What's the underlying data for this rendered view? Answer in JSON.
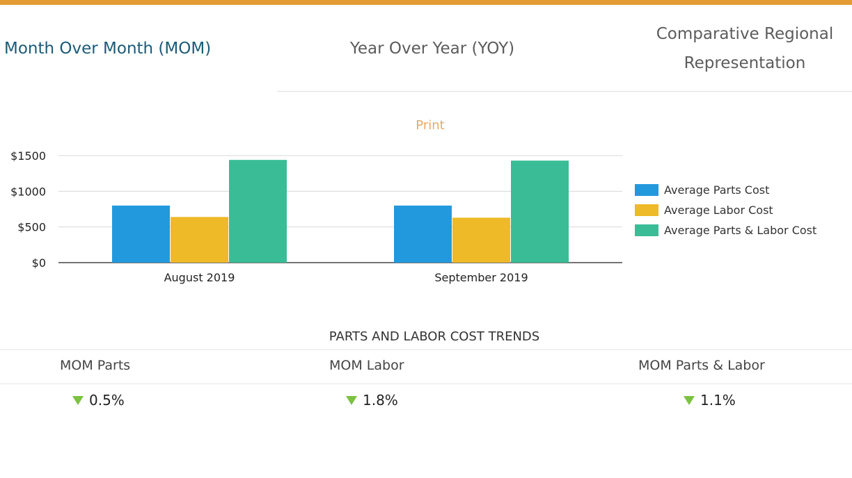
{
  "tabs": {
    "mom": "Month Over Month (MOM)",
    "yoy": "Year Over Year (YOY)",
    "crr_line1": "Comparative Regional",
    "crr_line2": "Representation"
  },
  "print_label": "Print",
  "chart_data": {
    "type": "bar",
    "categories": [
      "August 2019",
      "September 2019"
    ],
    "series": [
      {
        "name": "Average Parts Cost",
        "color": "#2299dd",
        "values": [
          800,
          800
        ]
      },
      {
        "name": "Average Labor Cost",
        "color": "#eeba27",
        "values": [
          640,
          630
        ]
      },
      {
        "name": "Average Parts & Labor Cost",
        "color": "#3abd96",
        "values": [
          1440,
          1430
        ]
      }
    ],
    "ylim": [
      0,
      1500
    ],
    "yticks": [
      0,
      500,
      1000,
      1500
    ],
    "ytick_labels": [
      "$0",
      "$500",
      "$1000",
      "$1500"
    ],
    "grid": true,
    "legend": "right"
  },
  "trends": {
    "title": "PARTS AND LABOR COST TRENDS",
    "items": [
      {
        "label": "MOM Parts",
        "value": "0.5%",
        "direction": "down"
      },
      {
        "label": "MOM Labor",
        "value": "1.8%",
        "direction": "down"
      },
      {
        "label": "MOM Parts & Labor",
        "value": "1.1%",
        "direction": "down"
      }
    ]
  }
}
